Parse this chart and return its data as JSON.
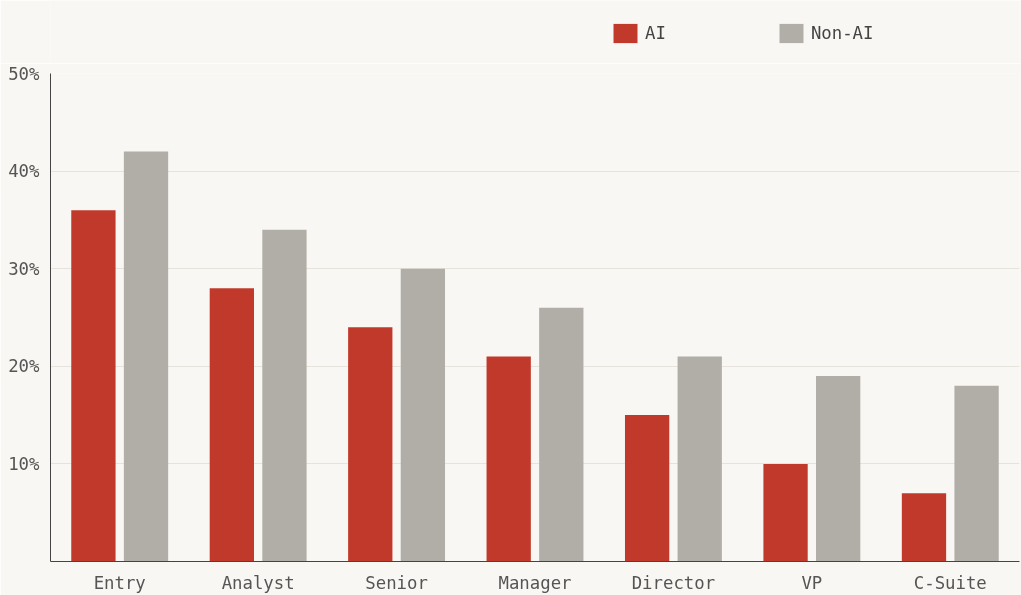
{
  "chart_data": {
    "type": "bar",
    "categories": [
      "Entry",
      "Analyst",
      "Senior",
      "Manager",
      "Director",
      "VP",
      "C-Suite"
    ],
    "series": [
      {
        "name": "AI",
        "color": "#c0392b",
        "values": [
          36,
          28,
          24,
          21,
          15,
          10,
          7
        ]
      },
      {
        "name": "Non-AI",
        "color": "#b0aea6",
        "values": [
          42,
          34,
          30,
          26,
          21,
          19,
          18
        ]
      }
    ],
    "ylim": [
      0,
      50
    ],
    "yticks": [
      {
        "value": 10,
        "label": "10%"
      },
      {
        "value": 20,
        "label": "20%"
      },
      {
        "value": 30,
        "label": "30%"
      },
      {
        "value": 40,
        "label": "40%"
      },
      {
        "value": 50,
        "label": "50%"
      }
    ],
    "grid": "y",
    "legend": "top"
  }
}
